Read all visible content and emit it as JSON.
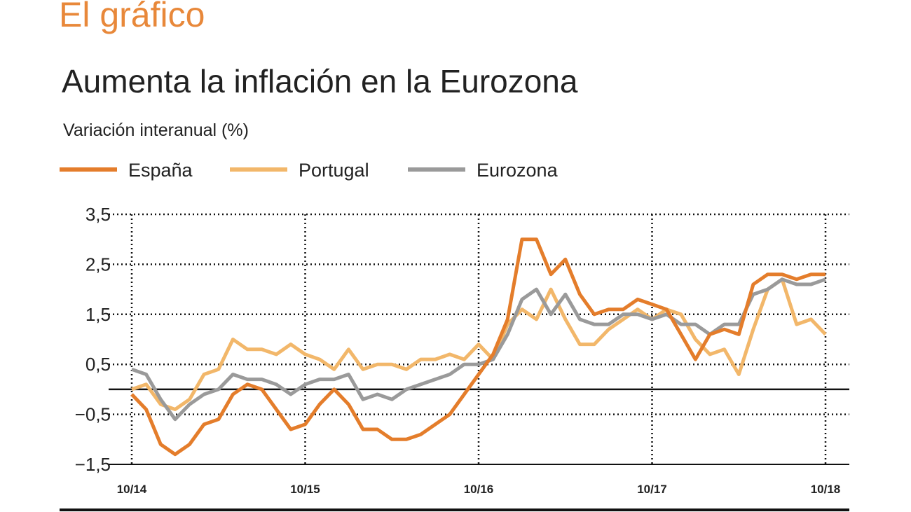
{
  "header": "El gráfico",
  "chart_data": {
    "type": "line",
    "title": "Aumenta la inflación en la Eurozona",
    "subtitle": "Variación interanual (%)",
    "categories": [
      "10/14",
      null,
      null,
      null,
      null,
      null,
      null,
      null,
      null,
      null,
      null,
      null,
      "10/15",
      null,
      null,
      null,
      null,
      null,
      null,
      null,
      null,
      null,
      null,
      null,
      "10/16",
      null,
      null,
      null,
      null,
      null,
      null,
      null,
      null,
      null,
      null,
      null,
      "10/17",
      null,
      null,
      null,
      null,
      null,
      null,
      null,
      null,
      null,
      null,
      null,
      "10/18"
    ],
    "series": [
      {
        "name": "España",
        "color": "#e47d2b",
        "values": [
          -0.1,
          -0.4,
          -1.1,
          -1.3,
          -1.1,
          -0.7,
          -0.6,
          -0.1,
          0.1,
          0.0,
          -0.4,
          -0.8,
          -0.7,
          -0.3,
          0.0,
          -0.3,
          -0.8,
          -0.8,
          -1.0,
          -1.0,
          -0.9,
          -0.7,
          -0.5,
          -0.1,
          0.3,
          0.7,
          1.4,
          3.0,
          3.0,
          2.3,
          2.6,
          1.9,
          1.5,
          1.6,
          1.6,
          1.8,
          1.7,
          1.6,
          1.1,
          0.6,
          1.1,
          1.2,
          1.1,
          2.1,
          2.3,
          2.3,
          2.2,
          2.3,
          2.3
        ]
      },
      {
        "name": "Portugal",
        "color": "#f2b76a",
        "values": [
          0.0,
          0.1,
          -0.3,
          -0.4,
          -0.2,
          0.3,
          0.4,
          1.0,
          0.8,
          0.8,
          0.7,
          0.9,
          0.7,
          0.6,
          0.4,
          0.8,
          0.4,
          0.5,
          0.5,
          0.4,
          0.6,
          0.6,
          0.7,
          0.6,
          0.9,
          0.6,
          1.3,
          1.6,
          1.4,
          2.0,
          1.4,
          0.9,
          0.9,
          1.2,
          1.4,
          1.6,
          1.4,
          1.6,
          1.5,
          1.0,
          0.7,
          0.8,
          0.3,
          1.2,
          2.0,
          2.2,
          1.3,
          1.4,
          1.1
        ]
      },
      {
        "name": "Eurozona",
        "color": "#9a9a9a",
        "values": [
          0.4,
          0.3,
          -0.2,
          -0.6,
          -0.3,
          -0.1,
          0.0,
          0.3,
          0.2,
          0.2,
          0.1,
          -0.1,
          0.1,
          0.2,
          0.2,
          0.3,
          -0.2,
          -0.1,
          -0.2,
          0.0,
          0.1,
          0.2,
          0.3,
          0.5,
          0.5,
          0.6,
          1.1,
          1.8,
          2.0,
          1.5,
          1.9,
          1.4,
          1.3,
          1.3,
          1.5,
          1.5,
          1.4,
          1.5,
          1.3,
          1.3,
          1.1,
          1.3,
          1.3,
          1.9,
          2.0,
          2.2,
          2.1,
          2.1,
          2.2
        ]
      }
    ],
    "ylim": [
      -1.5,
      3.5
    ],
    "yticks": [
      {
        "value": -1.5,
        "label": "−1,5"
      },
      {
        "value": -0.5,
        "label": "−0,5"
      },
      {
        "value": 0.5,
        "label": "0,5"
      },
      {
        "value": 1.5,
        "label": "1,5"
      },
      {
        "value": 2.5,
        "label": "2,5"
      },
      {
        "value": 3.5,
        "label": "3,5"
      }
    ],
    "grid": true
  }
}
